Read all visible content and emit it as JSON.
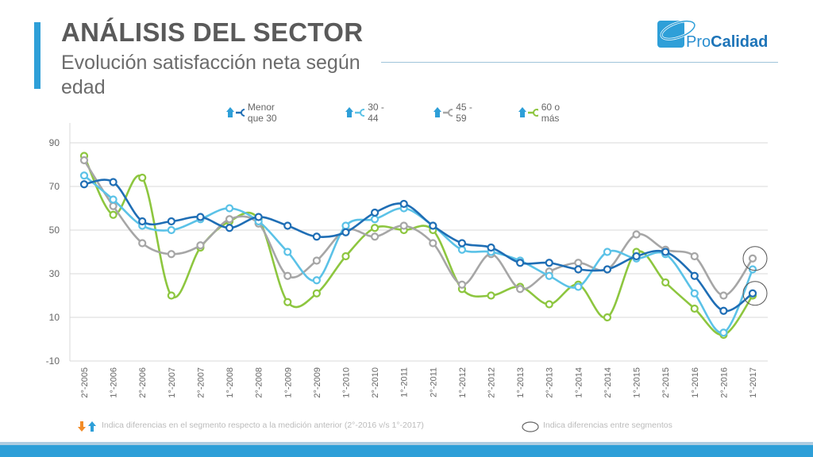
{
  "header": {
    "title": "ANÁLISIS DEL SECTOR",
    "subtitle": "Evolución satisfacción neta según edad"
  },
  "logo": {
    "text_part1": "Pro",
    "text_part2": "Calidad"
  },
  "legend": [
    {
      "label": "Menor que 30",
      "color": "#1f6eb5",
      "arrow": "up"
    },
    {
      "label": "30 - 44",
      "color": "#5bc2e7",
      "arrow": "up"
    },
    {
      "label": "45 - 59",
      "color": "#a6a6a6",
      "arrow": "up"
    },
    {
      "label": "60 o más",
      "color": "#8dc63f",
      "arrow": "up"
    }
  ],
  "footnotes": {
    "left": "Indica diferencias en el segmento respecto a la medición anterior (2°-2016 v/s  1°-2017)",
    "right": "Indica diferencias entre segmentos"
  },
  "colors": {
    "accent": "#2e9fd8",
    "arrow_up": "#2e9fd8",
    "arrow_down": "#f28c28"
  },
  "chart_data": {
    "type": "line",
    "x": [
      "2°-2005",
      "1°-2006",
      "2°-2006",
      "1°-2007",
      "2°-2007",
      "1°-2008",
      "2°-2008",
      "1°-2009",
      "2°-2009",
      "1°-2010",
      "2°-2010",
      "1°-2011",
      "2°-2011",
      "1°-2012",
      "2°-2012",
      "1°-2013",
      "2°-2013",
      "1°-2014",
      "2°-2014",
      "1°-2015",
      "2°-2015",
      "1°-2016",
      "2°-2016",
      "1°-2017"
    ],
    "yticks": [
      90,
      70,
      50,
      30,
      10,
      -10
    ],
    "ylim": [
      -10,
      90
    ],
    "grid": true,
    "legend_position": "top",
    "series": [
      {
        "name": "Menor que 30",
        "color": "#1f6eb5",
        "values": [
          71,
          72,
          54,
          54,
          56,
          51,
          56,
          52,
          47,
          49,
          58,
          62,
          52,
          44,
          42,
          35,
          35,
          32,
          32,
          38,
          40,
          29,
          13,
          21
        ]
      },
      {
        "name": "30 - 44",
        "color": "#5bc2e7",
        "values": [
          75,
          64,
          52,
          50,
          55,
          60,
          54,
          40,
          27,
          52,
          55,
          60,
          52,
          41,
          40,
          36,
          29,
          24,
          40,
          37,
          39,
          21,
          3,
          32
        ]
      },
      {
        "name": "45 - 59",
        "color": "#a6a6a6",
        "values": [
          82,
          61,
          44,
          39,
          43,
          55,
          53,
          29,
          36,
          50,
          47,
          52,
          44,
          25,
          39,
          23,
          31,
          35,
          32,
          48,
          41,
          38,
          20,
          37
        ]
      },
      {
        "name": "60 o más",
        "color": "#8dc63f",
        "values": [
          84,
          57,
          74,
          20,
          42,
          54,
          55,
          17,
          21,
          38,
          51,
          50,
          50,
          23,
          20,
          24,
          16,
          25,
          10,
          40,
          26,
          14,
          2,
          20
        ]
      }
    ],
    "highlight_circles": [
      {
        "x": "1°-2017",
        "y": 37
      },
      {
        "x": "1°-2017",
        "y": 21
      }
    ]
  }
}
